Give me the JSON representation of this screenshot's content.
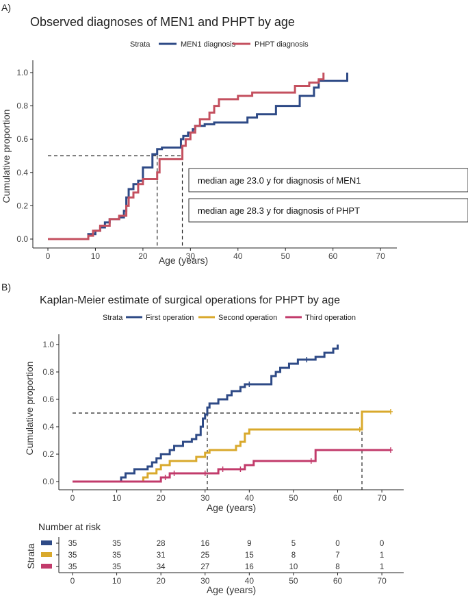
{
  "chart_data": [
    {
      "panel_label": "A)",
      "type": "line",
      "title": "Observed diagnoses of MEN1 and PHPT by age",
      "xlabel": "Age (years)",
      "ylabel": "Cumulative proportion",
      "xlim": [
        0,
        72
      ],
      "ylim": [
        0,
        1
      ],
      "xticks": [
        "0",
        "10",
        "20",
        "30",
        "40",
        "50",
        "60",
        "70"
      ],
      "yticks": [
        "0.0",
        "0.2",
        "0.4",
        "0.6",
        "0.8",
        "1.0"
      ],
      "legend": {
        "title": "Strata",
        "position": "top"
      },
      "series": [
        {
          "name": "MEN1 diagnosis",
          "color": "#2e4a86",
          "x": [
            0,
            8.5,
            10,
            11,
            12,
            13,
            15,
            16,
            16.5,
            17,
            18,
            19,
            20,
            22,
            23,
            24,
            26,
            28,
            28.5,
            29.5,
            30.5,
            31,
            33,
            35,
            42,
            44,
            48,
            52,
            53,
            56,
            57,
            63,
            63
          ],
          "y": [
            0,
            0.03,
            0.05,
            0.07,
            0.1,
            0.12,
            0.13,
            0.17,
            0.25,
            0.3,
            0.33,
            0.35,
            0.43,
            0.51,
            0.54,
            0.55,
            0.55,
            0.6,
            0.62,
            0.64,
            0.66,
            0.68,
            0.69,
            0.7,
            0.73,
            0.75,
            0.8,
            0.8,
            0.86,
            0.91,
            0.95,
            0.98,
            1.0
          ]
        },
        {
          "name": "PHPT diagnosis",
          "color": "#c4505f",
          "x": [
            0,
            8.5,
            9.5,
            11,
            13,
            15,
            16.5,
            17,
            18,
            19,
            20,
            21,
            23,
            23.5,
            24,
            28,
            28.3,
            29,
            30,
            31,
            32,
            34,
            35,
            36,
            38,
            40,
            43,
            48,
            52,
            53,
            55,
            57,
            58,
            58
          ],
          "y": [
            0,
            0.02,
            0.05,
            0.08,
            0.12,
            0.14,
            0.2,
            0.25,
            0.28,
            0.33,
            0.36,
            0.36,
            0.4,
            0.48,
            0.48,
            0.48,
            0.56,
            0.6,
            0.64,
            0.68,
            0.72,
            0.76,
            0.8,
            0.84,
            0.84,
            0.86,
            0.88,
            0.88,
            0.92,
            0.92,
            0.94,
            0.96,
            0.98,
            1.0
          ]
        }
      ],
      "reference": {
        "y": 0.5,
        "medians": [
          23.0,
          28.3
        ]
      },
      "annotations": [
        "median age 23.0 y for diagnosis of MEN1",
        "median age 28.3 y for diagnosis of PHPT"
      ]
    },
    {
      "panel_label": "B)",
      "type": "line",
      "title": "Kaplan-Meier estimate of surgical operations for PHPT by age",
      "xlabel": "Age (years)",
      "ylabel": "Cumulative proportion",
      "xlim": [
        0,
        72
      ],
      "ylim": [
        0,
        1
      ],
      "xticks": [
        "0",
        "10",
        "20",
        "30",
        "40",
        "50",
        "60",
        "70"
      ],
      "yticks": [
        "0.0",
        "0.2",
        "0.4",
        "0.6",
        "0.8",
        "1.0"
      ],
      "legend": {
        "title": "Strata",
        "position": "top"
      },
      "series": [
        {
          "name": "First operation",
          "color": "#2e4a86",
          "x": [
            0,
            11,
            12,
            14,
            17,
            18,
            19,
            20,
            22,
            23,
            25,
            27,
            28,
            29,
            29.5,
            30,
            30.5,
            31,
            33,
            35,
            36,
            38,
            39,
            40,
            45,
            46,
            47,
            49,
            51,
            53,
            55,
            57,
            59,
            60,
            60
          ],
          "y": [
            0,
            0.03,
            0.06,
            0.09,
            0.11,
            0.14,
            0.17,
            0.2,
            0.23,
            0.26,
            0.29,
            0.31,
            0.34,
            0.4,
            0.46,
            0.49,
            0.54,
            0.57,
            0.6,
            0.63,
            0.66,
            0.69,
            0.71,
            0.71,
            0.77,
            0.8,
            0.83,
            0.86,
            0.89,
            0.89,
            0.91,
            0.94,
            0.97,
            0.99,
            1.0
          ]
        },
        {
          "name": "Second operation",
          "color": "#d9a92c",
          "x": [
            0,
            16,
            17,
            19,
            20,
            22,
            28,
            30,
            31,
            37,
            38,
            39,
            40,
            65,
            65.5,
            72
          ],
          "y": [
            0,
            0.03,
            0.06,
            0.09,
            0.12,
            0.15,
            0.18,
            0.21,
            0.23,
            0.26,
            0.29,
            0.35,
            0.38,
            0.38,
            0.51,
            0.51
          ]
        },
        {
          "name": "Third operation",
          "color": "#c23b6b",
          "x": [
            0,
            20,
            21,
            22,
            23,
            30,
            33,
            34,
            38,
            39,
            41,
            54,
            55,
            72
          ],
          "y": [
            0,
            0.03,
            0.03,
            0.06,
            0.06,
            0.06,
            0.09,
            0.09,
            0.09,
            0.12,
            0.15,
            0.15,
            0.23,
            0.23
          ]
        }
      ],
      "reference": {
        "y": 0.5,
        "medians": [
          30.5,
          65.5
        ]
      },
      "risk_table": {
        "title": "Number at risk",
        "ylabel": "Strata",
        "xlabel": "Age (years)",
        "ages": [
          "0",
          "10",
          "20",
          "30",
          "40",
          "50",
          "60",
          "70"
        ],
        "rows": [
          {
            "color": "#2e4a86",
            "values": [
              "35",
              "35",
              "28",
              "16",
              "9",
              "5",
              "0",
              "0"
            ]
          },
          {
            "color": "#d9a92c",
            "values": [
              "35",
              "35",
              "31",
              "25",
              "15",
              "8",
              "7",
              "1"
            ]
          },
          {
            "color": "#c23b6b",
            "values": [
              "35",
              "35",
              "34",
              "27",
              "16",
              "10",
              "8",
              "1"
            ]
          }
        ]
      }
    }
  ]
}
